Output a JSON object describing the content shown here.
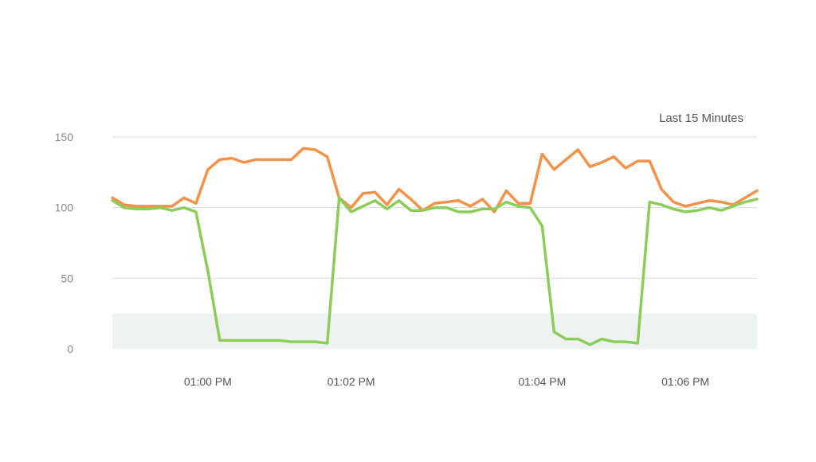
{
  "chart_data": {
    "type": "line",
    "time_range_label": "Last 15 Minutes",
    "ylim": [
      0,
      150
    ],
    "yticks": [
      "0",
      "50",
      "100",
      "150"
    ],
    "xlim": [
      "12:58:40 PM",
      "01:07:40 PM"
    ],
    "xticks": [
      {
        "label": "01:00 PM",
        "time": "01:00:00 PM"
      },
      {
        "label": "01:02 PM",
        "time": "01:02:00 PM"
      },
      {
        "label": "01:04 PM",
        "time": "01:04:40 PM"
      },
      {
        "label": "01:06 PM",
        "time": "01:06:40 PM"
      }
    ],
    "threshold_band": [
      0,
      25
    ],
    "grid": true,
    "colors": {
      "orange": "#f5924a",
      "green": "#8ccd5a",
      "band": "#eef3f2",
      "grid": "#dddddd"
    },
    "series": [
      {
        "color": "#f5924a",
        "points": [
          [
            "12:58:40 PM",
            107
          ],
          [
            "12:58:50 PM",
            102
          ],
          [
            "12:59:00 PM",
            101
          ],
          [
            "12:59:10 PM",
            101
          ],
          [
            "12:59:20 PM",
            101
          ],
          [
            "12:59:30 PM",
            101
          ],
          [
            "12:59:40 PM",
            107
          ],
          [
            "12:59:50 PM",
            103
          ],
          [
            "01:00:00 PM",
            127
          ],
          [
            "01:00:10 PM",
            134
          ],
          [
            "01:00:20 PM",
            135
          ],
          [
            "01:00:30 PM",
            132
          ],
          [
            "01:00:40 PM",
            134
          ],
          [
            "01:00:50 PM",
            134
          ],
          [
            "01:01:00 PM",
            134
          ],
          [
            "01:01:10 PM",
            134
          ],
          [
            "01:01:20 PM",
            142
          ],
          [
            "01:01:30 PM",
            141
          ],
          [
            "01:01:40 PM",
            136
          ],
          [
            "01:01:50 PM",
            107
          ],
          [
            "01:02:00 PM",
            100
          ],
          [
            "01:02:10 PM",
            110
          ],
          [
            "01:02:20 PM",
            111
          ],
          [
            "01:02:30 PM",
            102
          ],
          [
            "01:02:40 PM",
            113
          ],
          [
            "01:02:50 PM",
            106
          ],
          [
            "01:03:00 PM",
            98
          ],
          [
            "01:03:10 PM",
            103
          ],
          [
            "01:03:20 PM",
            104
          ],
          [
            "01:03:30 PM",
            105
          ],
          [
            "01:03:40 PM",
            101
          ],
          [
            "01:03:50 PM",
            106
          ],
          [
            "01:04:00 PM",
            97
          ],
          [
            "01:04:10 PM",
            112
          ],
          [
            "01:04:20 PM",
            103
          ],
          [
            "01:04:30 PM",
            103
          ],
          [
            "01:04:40 PM",
            138
          ],
          [
            "01:04:50 PM",
            127
          ],
          [
            "01:05:00 PM",
            134
          ],
          [
            "01:05:10 PM",
            141
          ],
          [
            "01:05:20 PM",
            129
          ],
          [
            "01:05:30 PM",
            132
          ],
          [
            "01:05:40 PM",
            136
          ],
          [
            "01:05:50 PM",
            128
          ],
          [
            "01:06:00 PM",
            133
          ],
          [
            "01:06:10 PM",
            133
          ],
          [
            "01:06:20 PM",
            113
          ],
          [
            "01:06:30 PM",
            104
          ],
          [
            "01:06:40 PM",
            101
          ],
          [
            "01:06:50 PM",
            103
          ],
          [
            "01:07:00 PM",
            105
          ],
          [
            "01:07:10 PM",
            104
          ],
          [
            "01:07:20 PM",
            102
          ],
          [
            "01:07:30 PM",
            107
          ],
          [
            "01:07:40 PM",
            112
          ]
        ]
      },
      {
        "color": "#8ccd5a",
        "points": [
          [
            "12:58:40 PM",
            105
          ],
          [
            "12:58:50 PM",
            100
          ],
          [
            "12:59:00 PM",
            99
          ],
          [
            "12:59:10 PM",
            99
          ],
          [
            "12:59:20 PM",
            100
          ],
          [
            "12:59:30 PM",
            98
          ],
          [
            "12:59:40 PM",
            100
          ],
          [
            "12:59:50 PM",
            97
          ],
          [
            "01:00:00 PM",
            55
          ],
          [
            "01:00:10 PM",
            6
          ],
          [
            "01:00:20 PM",
            6
          ],
          [
            "01:00:30 PM",
            6
          ],
          [
            "01:00:40 PM",
            6
          ],
          [
            "01:00:50 PM",
            6
          ],
          [
            "01:01:00 PM",
            6
          ],
          [
            "01:01:10 PM",
            5
          ],
          [
            "01:01:20 PM",
            5
          ],
          [
            "01:01:30 PM",
            5
          ],
          [
            "01:01:40 PM",
            4
          ],
          [
            "01:01:50 PM",
            107
          ],
          [
            "01:02:00 PM",
            97
          ],
          [
            "01:02:10 PM",
            101
          ],
          [
            "01:02:20 PM",
            105
          ],
          [
            "01:02:30 PM",
            99
          ],
          [
            "01:02:40 PM",
            105
          ],
          [
            "01:02:50 PM",
            98
          ],
          [
            "01:03:00 PM",
            98
          ],
          [
            "01:03:10 PM",
            100
          ],
          [
            "01:03:20 PM",
            100
          ],
          [
            "01:03:30 PM",
            97
          ],
          [
            "01:03:40 PM",
            97
          ],
          [
            "01:03:50 PM",
            99
          ],
          [
            "01:04:00 PM",
            99
          ],
          [
            "01:04:10 PM",
            104
          ],
          [
            "01:04:20 PM",
            101
          ],
          [
            "01:04:30 PM",
            100
          ],
          [
            "01:04:40 PM",
            87
          ],
          [
            "01:04:50 PM",
            12
          ],
          [
            "01:05:00 PM",
            7
          ],
          [
            "01:05:10 PM",
            7
          ],
          [
            "01:05:20 PM",
            3
          ],
          [
            "01:05:30 PM",
            7
          ],
          [
            "01:05:40 PM",
            5
          ],
          [
            "01:05:50 PM",
            5
          ],
          [
            "01:06:00 PM",
            4
          ],
          [
            "01:06:10 PM",
            104
          ],
          [
            "01:06:20 PM",
            102
          ],
          [
            "01:06:30 PM",
            99
          ],
          [
            "01:06:40 PM",
            97
          ],
          [
            "01:06:50 PM",
            98
          ],
          [
            "01:07:00 PM",
            100
          ],
          [
            "01:07:10 PM",
            98
          ],
          [
            "01:07:20 PM",
            101
          ],
          [
            "01:07:30 PM",
            104
          ],
          [
            "01:07:40 PM",
            106
          ]
        ]
      }
    ]
  }
}
